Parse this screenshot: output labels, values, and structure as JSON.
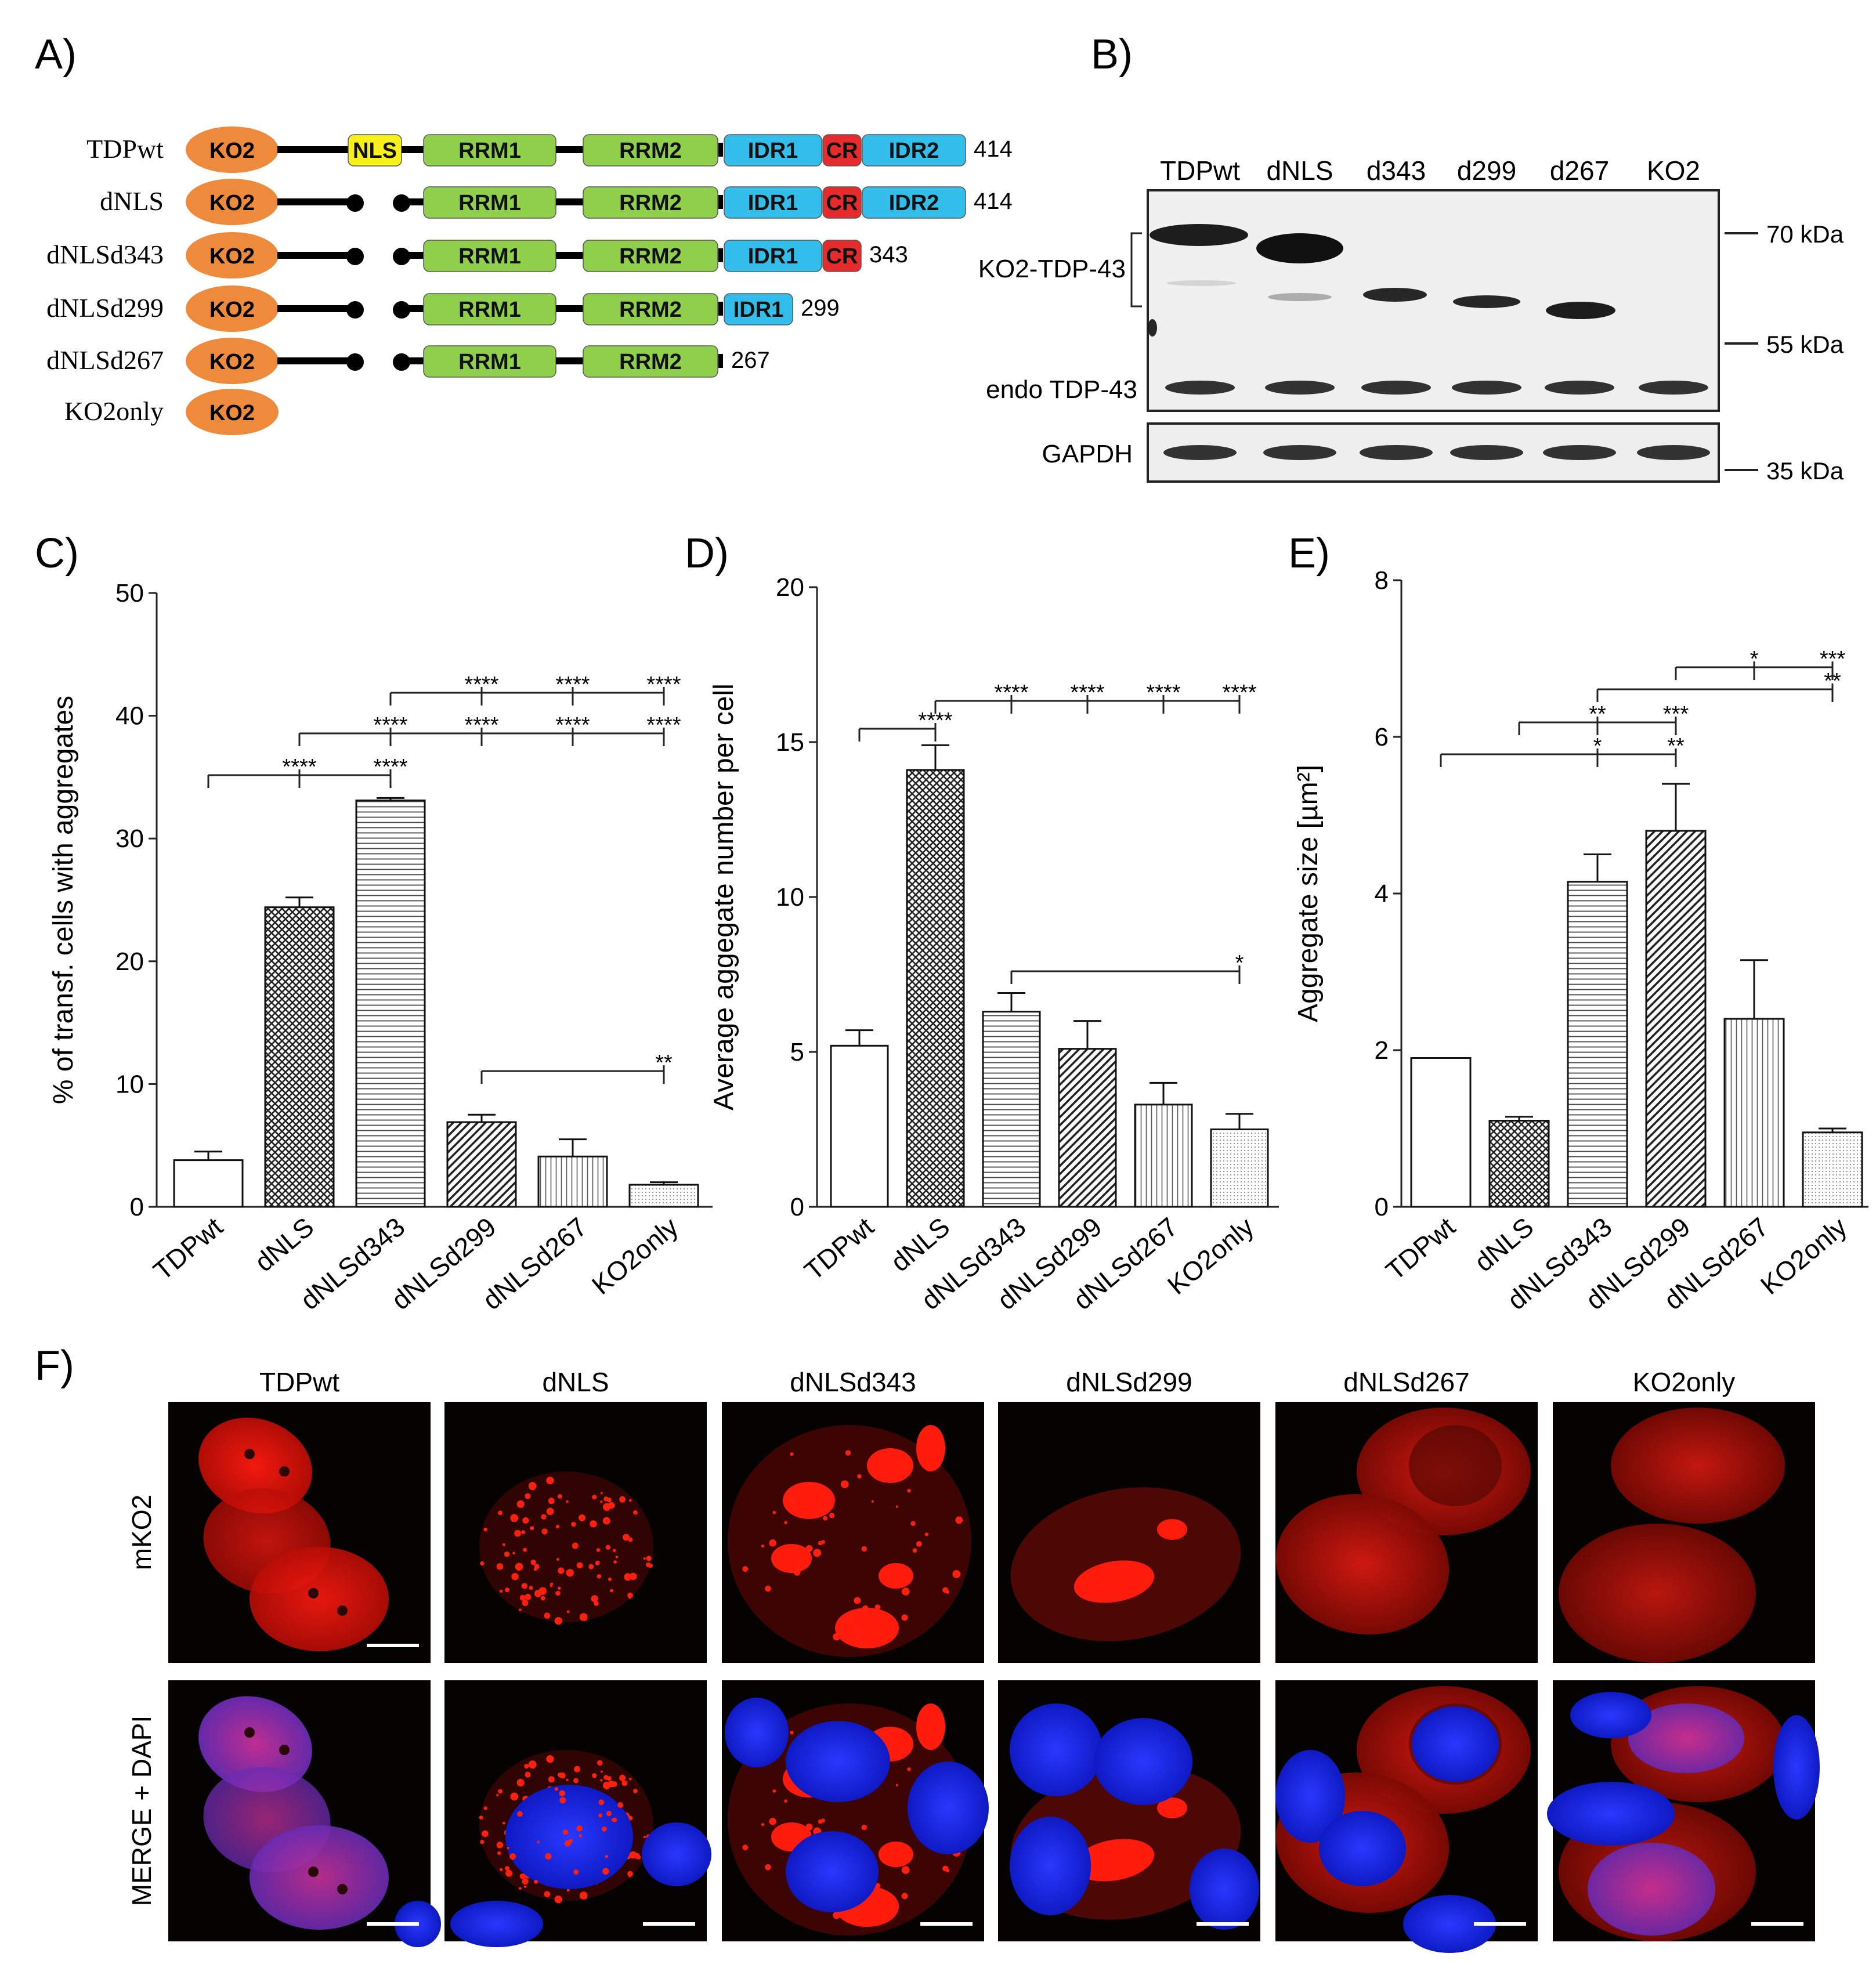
{
  "panel_labels": {
    "a": "A)",
    "b": "B)",
    "c": "C)",
    "d": "D)",
    "e": "E)",
    "f": "F)"
  },
  "constructs": [
    {
      "name": "TDPwt",
      "end": "414"
    },
    {
      "name": "dNLS",
      "end": "414"
    },
    {
      "name": "dNLSd343",
      "end": "343"
    },
    {
      "name": "dNLSd299",
      "end": "299"
    },
    {
      "name": "dNLSd267",
      "end": "267"
    },
    {
      "name": "KO2only",
      "end": ""
    }
  ],
  "domains": {
    "ko2": "KO2",
    "nls": "NLS",
    "rrm1": "RRM1",
    "rrm2": "RRM2",
    "idr1": "IDR1",
    "cr": "CR",
    "idr2": "IDR2"
  },
  "domain_colors": {
    "ko2": "#ee8a3c",
    "nls": "#f7f01a",
    "rrm": "#8fcf4c",
    "idr": "#33bdea",
    "cr": "#e52b2b"
  },
  "blot": {
    "lanes": [
      "TDPwt",
      "dNLS",
      "d343",
      "d299",
      "d267",
      "KO2"
    ],
    "row_labels": {
      "ko2_tdp43": "KO2-TDP-43",
      "endo": "endo TDP-43",
      "gapdh": "GAPDH"
    },
    "markers": [
      "70 kDa",
      "55 kDa",
      "35 kDa"
    ]
  },
  "chart_data": [
    {
      "type": "bar",
      "panel": "C",
      "categories": [
        "TDPwt",
        "dNLS",
        "dNLSd343",
        "dNLSd299",
        "dNLSd267",
        "KO2only"
      ],
      "values": [
        3.8,
        24.4,
        33.1,
        6.9,
        4.1,
        1.8
      ],
      "errors": [
        0.7,
        0.8,
        0.2,
        0.6,
        1.4,
        0.2
      ],
      "ylabel": "% of transf. cells with aggregates",
      "ylim": [
        0,
        50
      ],
      "yticks": [
        "0",
        "10",
        "20",
        "30",
        "40",
        "50"
      ],
      "significance": [
        {
          "from": 0,
          "to": [
            1,
            2
          ],
          "labels": [
            "****",
            "****"
          ]
        },
        {
          "from": 1,
          "to": [
            2,
            3,
            4,
            5
          ],
          "labels": [
            "****",
            "****",
            "****",
            "****"
          ]
        },
        {
          "from": 2,
          "to": [
            3,
            4,
            5
          ],
          "labels": [
            "****",
            "****",
            "****"
          ]
        },
        {
          "from": 3,
          "to": [
            5
          ],
          "labels": [
            "**"
          ]
        }
      ]
    },
    {
      "type": "bar",
      "panel": "D",
      "categories": [
        "TDPwt",
        "dNLS",
        "dNLSd343",
        "dNLSd299",
        "dNLSd267",
        "KO2only"
      ],
      "values": [
        5.2,
        14.1,
        6.3,
        5.1,
        3.3,
        2.5
      ],
      "errors": [
        0.5,
        0.8,
        0.6,
        0.9,
        0.7,
        0.5
      ],
      "ylabel": "Average aggegate number per cell",
      "ylim": [
        0,
        20
      ],
      "yticks": [
        "0",
        "5",
        "10",
        "15",
        "20"
      ],
      "significance": [
        {
          "from": 0,
          "to": [
            1
          ],
          "labels": [
            "****"
          ]
        },
        {
          "from": 1,
          "to": [
            2,
            3,
            4,
            5
          ],
          "labels": [
            "****",
            "****",
            "****",
            "****"
          ]
        },
        {
          "from": 2,
          "to": [
            5
          ],
          "labels": [
            "*"
          ]
        }
      ]
    },
    {
      "type": "bar",
      "panel": "E",
      "categories": [
        "TDPwt",
        "dNLS",
        "dNLSd343",
        "dNLSd299",
        "dNLSd267",
        "KO2only"
      ],
      "values": [
        1.9,
        1.1,
        4.15,
        4.8,
        2.4,
        0.95
      ],
      "errors": [
        0.0,
        0.05,
        0.35,
        0.6,
        0.75,
        0.05
      ],
      "ylabel": "Aggregate size [µm²]",
      "ylim": [
        0,
        8
      ],
      "yticks": [
        "0",
        "2",
        "4",
        "6",
        "8"
      ],
      "significance": [
        {
          "from": 0,
          "to": [
            2,
            3
          ],
          "labels": [
            "*",
            "**"
          ]
        },
        {
          "from": 1,
          "to": [
            2,
            3
          ],
          "labels": [
            "**",
            "***"
          ]
        },
        {
          "from": 2,
          "to": [
            5
          ],
          "labels": [
            "**"
          ]
        },
        {
          "from": 3,
          "to": [
            4,
            5
          ],
          "labels": [
            "*",
            "***"
          ]
        }
      ]
    }
  ],
  "micrographs": {
    "columns": [
      "TDPwt",
      "dNLS",
      "dNLSd343",
      "dNLSd299",
      "dNLSd267",
      "KO2only"
    ],
    "rows": [
      "mKO2",
      "MERGE + DAPI"
    ]
  }
}
